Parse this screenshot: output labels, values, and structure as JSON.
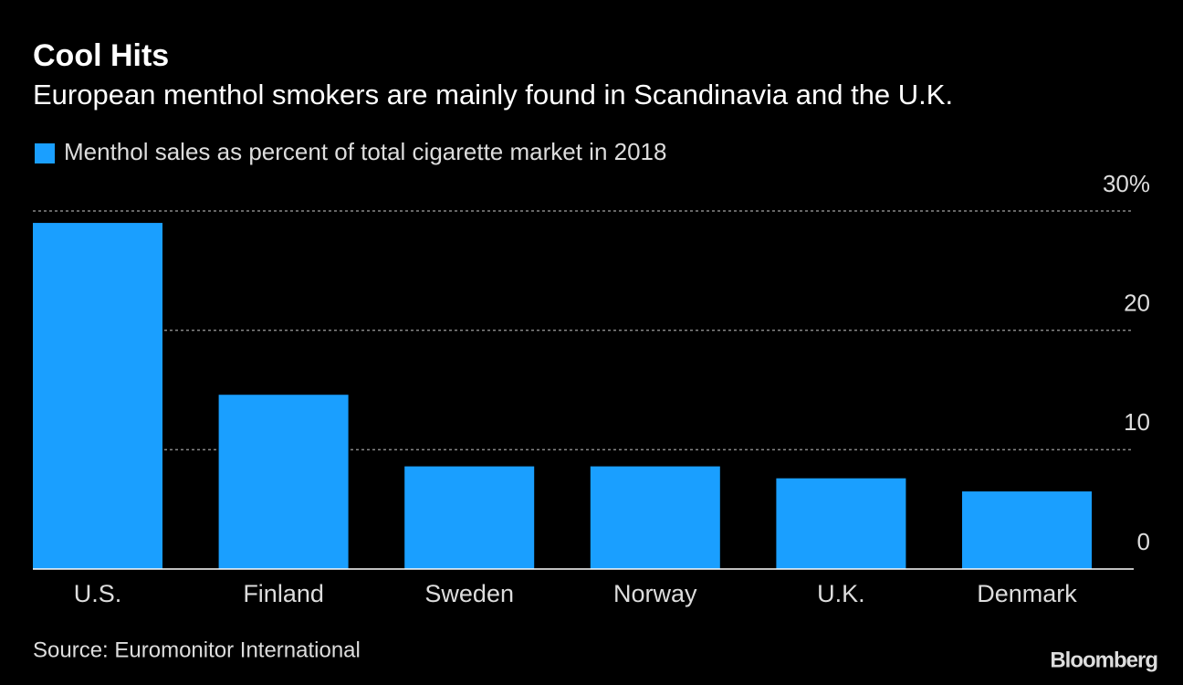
{
  "chart_data": {
    "type": "bar",
    "title": "Cool Hits",
    "subtitle": "European menthol smokers are mainly found in Scandinavia and the U.K.",
    "categories": [
      "U.S.",
      "Finland",
      "Sweden",
      "Norway",
      "U.K.",
      "Denmark"
    ],
    "series": [
      {
        "name": "Menthol sales as percent of total cigarette market in 2018",
        "color": "#1a9fff",
        "values": [
          29.0,
          14.6,
          8.6,
          8.6,
          7.6,
          6.5
        ]
      }
    ],
    "ylim": [
      0,
      30
    ],
    "yticks": [
      0,
      10,
      20,
      {
        "value": 30,
        "label": "30%"
      }
    ],
    "grid": true,
    "source": "Source: Euromonitor International",
    "brand": "Bloomberg"
  }
}
